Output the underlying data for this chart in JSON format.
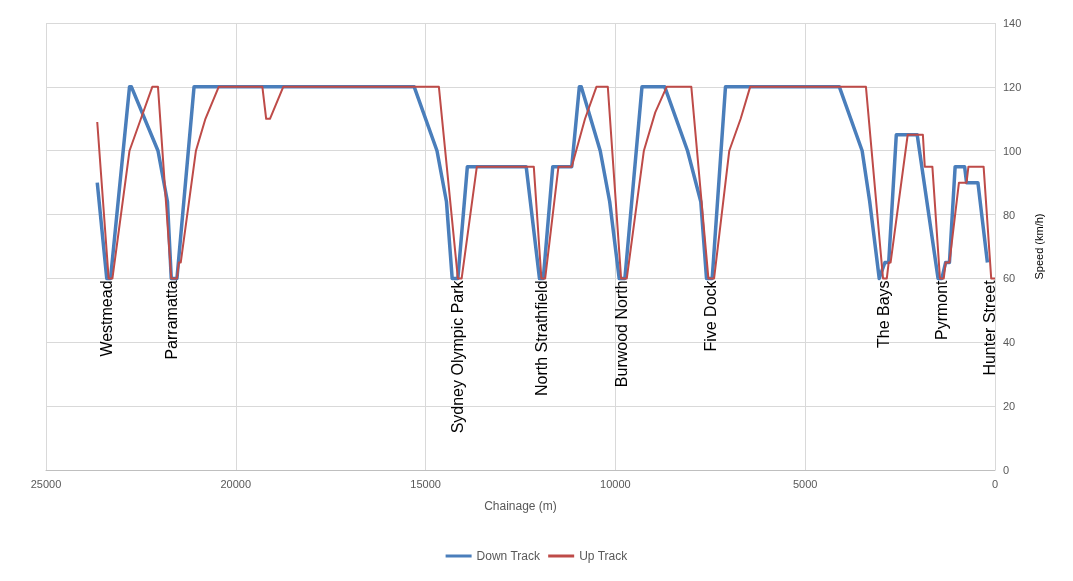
{
  "chart_data": {
    "type": "line",
    "xlabel": "Chainage (m)",
    "ylabel": "Speed (km/h)",
    "xlim": [
      25000,
      0
    ],
    "xticks": [
      25000,
      20000,
      15000,
      10000,
      5000,
      0
    ],
    "ylim": [
      0,
      140
    ],
    "yticks": [
      0,
      20,
      40,
      60,
      80,
      100,
      120,
      140
    ],
    "grid": true,
    "legend": "bottom",
    "marker": "none",
    "line_style": "solid",
    "series": [
      {
        "name": "Down Track",
        "color": "#4a7ebb",
        "x": [
          23650,
          23400,
          23300,
          22800,
          22750,
          22050,
          21800,
          21700,
          21550,
          21100,
          15300,
          14700,
          14450,
          14300,
          14150,
          13900,
          12350,
          12000,
          11900,
          11650,
          11150,
          10950,
          10900,
          10400,
          10150,
          9900,
          9750,
          9300,
          8700,
          8100,
          7750,
          7600,
          7450,
          7100,
          4100,
          3500,
          3300,
          3050,
          2900,
          2800,
          2600,
          2050,
          1500,
          1400,
          1300,
          1200,
          1050,
          800,
          750,
          450,
          200
        ],
        "values": [
          90,
          60,
          60,
          120,
          120,
          100,
          84,
          60,
          60,
          120,
          120,
          100,
          84,
          60,
          60,
          95,
          95,
          60,
          60,
          95,
          95,
          120,
          120,
          100,
          84,
          60,
          60,
          120,
          120,
          100,
          84,
          60,
          60,
          120,
          120,
          100,
          84,
          60,
          65,
          65,
          105,
          105,
          60,
          60,
          65,
          65,
          95,
          95,
          90,
          90,
          65
        ]
      },
      {
        "name": "Up Track",
        "color": "#be4b48",
        "x": [
          23650,
          23350,
          23250,
          22800,
          22500,
          22200,
          22050,
          21700,
          21550,
          21500,
          21450,
          21050,
          20800,
          20450,
          19300,
          19200,
          19100,
          18750,
          14650,
          14150,
          14050,
          13650,
          12150,
          11950,
          11850,
          11500,
          11150,
          10800,
          10500,
          10200,
          9850,
          9700,
          9250,
          8950,
          8650,
          8000,
          7550,
          7400,
          7000,
          6700,
          6450,
          3400,
          2950,
          2850,
          2800,
          2750,
          2300,
          1900,
          1850,
          1650,
          1450,
          1350,
          1300,
          1200,
          950,
          750,
          700,
          300,
          100,
          0
        ],
        "values": [
          109,
          60,
          60,
          100,
          110,
          120,
          120,
          60,
          60,
          65,
          65,
          100,
          110,
          120,
          120,
          110,
          110,
          120,
          120,
          60,
          60,
          95,
          95,
          60,
          60,
          95,
          95,
          110,
          120,
          120,
          60,
          60,
          100,
          112,
          120,
          120,
          60,
          60,
          100,
          110,
          120,
          120,
          60,
          60,
          65,
          65,
          105,
          105,
          95,
          95,
          60,
          60,
          65,
          65,
          90,
          90,
          95,
          95,
          60,
          60
        ]
      }
    ],
    "annotations": [
      {
        "text": "Westmead",
        "x": 23400,
        "y": 60
      },
      {
        "text": "Parramatta",
        "x": 21700,
        "y": 60
      },
      {
        "text": "Sydney Olympic Park",
        "x": 14150,
        "y": 60
      },
      {
        "text": "North Strathfield",
        "x": 11950,
        "y": 60
      },
      {
        "text": "Burwood North",
        "x": 9850,
        "y": 60
      },
      {
        "text": "Five Dock",
        "x": 7500,
        "y": 60
      },
      {
        "text": "The Bays",
        "x": 2950,
        "y": 60
      },
      {
        "text": "Pyrmont",
        "x": 1400,
        "y": 60
      },
      {
        "text": "Hunter Street",
        "x": 150,
        "y": 60
      }
    ]
  }
}
